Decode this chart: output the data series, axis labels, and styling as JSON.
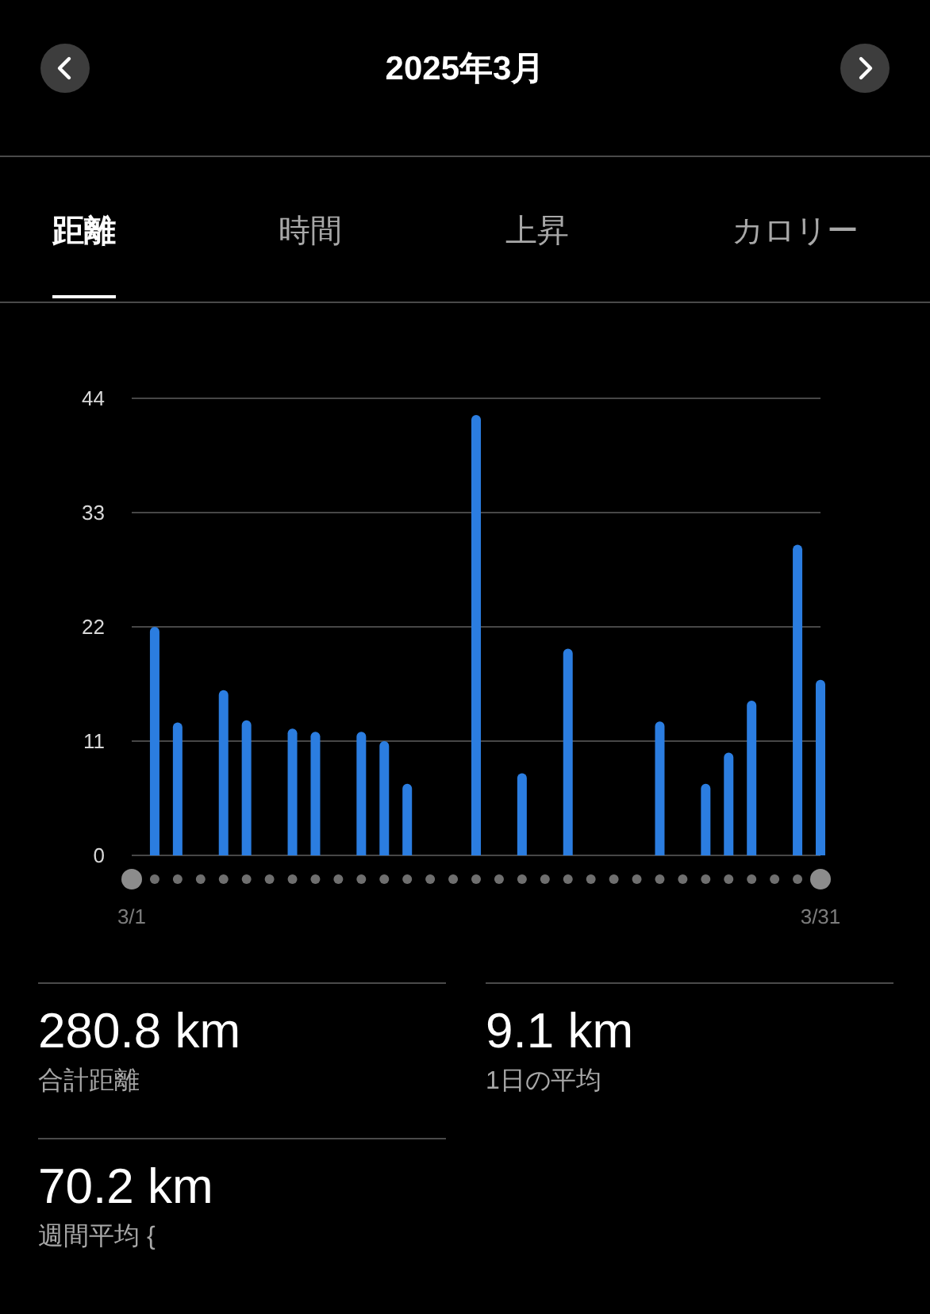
{
  "chart_data": [
    {
      "type": "bar",
      "title": "2025年3月",
      "annotations": [
        "距離",
        "時間",
        "上昇",
        "カロリー"
      ],
      "categories": [
        "3/1",
        null,
        null,
        null,
        null,
        null,
        null,
        null,
        null,
        null,
        null,
        null,
        null,
        null,
        null,
        null,
        null,
        null,
        null,
        null,
        null,
        null,
        null,
        null,
        null,
        null,
        null,
        null,
        null,
        null,
        "3/31"
      ],
      "values": [
        null,
        22.0,
        12.8,
        null,
        15.9,
        13.0,
        null,
        12.2,
        11.9,
        null,
        11.9,
        11.0,
        6.9,
        null,
        null,
        42.4,
        null,
        7.9,
        null,
        19.9,
        null,
        null,
        null,
        12.9,
        null,
        6.9,
        9.9,
        14.9,
        null,
        29.9,
        16.9
      ],
      "color": "#2b7de0",
      "ylim": [
        0,
        44
      ],
      "yticks": [
        0,
        11,
        22,
        33,
        44
      ],
      "grid": "y"
    },
    {
      "type": "other",
      "annotations": [
        "280.8 km",
        "合計距離",
        "9.1 km",
        "1日の平均",
        "70.2 km",
        "週間平均 {"
      ]
    }
  ]
}
